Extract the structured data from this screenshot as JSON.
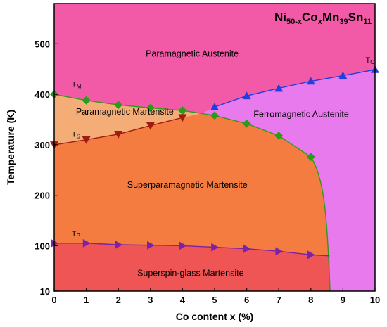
{
  "chart_data": {
    "type": "line",
    "title_parts": [
      {
        "text": "Ni",
        "sub": false
      },
      {
        "text": "50-x",
        "sub": true
      },
      {
        "text": "Co",
        "sub": false
      },
      {
        "text": "x",
        "sub": true
      },
      {
        "text": "Mn",
        "sub": false
      },
      {
        "text": "39",
        "sub": true
      },
      {
        "text": "Sn",
        "sub": false
      },
      {
        "text": "11",
        "sub": true
      }
    ],
    "xlabel": "Co content x (%)",
    "ylabel": "Temperature (K)",
    "xlim": [
      0,
      10
    ],
    "ylim": [
      10,
      580
    ],
    "x_ticks": [
      0,
      1,
      2,
      3,
      4,
      5,
      6,
      7,
      8,
      9,
      10
    ],
    "y_ticks": [
      10,
      100,
      200,
      300,
      400,
      500
    ],
    "grid": false,
    "series": [
      {
        "label_main": "T",
        "label_sub": "M",
        "marker": "diamond",
        "color": "#2e9a1c",
        "x": [
          0,
          1,
          2,
          3,
          4,
          5,
          6,
          7,
          8
        ],
        "y": [
          400,
          388,
          379,
          373,
          368,
          358,
          342,
          318,
          276
        ]
      },
      {
        "label_main": "T",
        "label_sub": "C",
        "marker": "triangle-up",
        "color": "#1f3fe0",
        "x": [
          5,
          6,
          7,
          8,
          9,
          10
        ],
        "y": [
          375,
          397,
          412,
          426,
          437,
          449
        ]
      },
      {
        "label_main": "T",
        "label_sub": "S",
        "marker": "triangle-down",
        "color": "#a01c10",
        "x": [
          0,
          1,
          2,
          3,
          4
        ],
        "y": [
          300,
          310,
          321,
          338,
          354
        ]
      },
      {
        "label_main": "T",
        "label_sub": "P",
        "marker": "triangle-right",
        "color": "#7a22a8",
        "x": [
          0,
          1,
          2,
          3,
          4,
          5,
          6,
          7,
          8
        ],
        "y": [
          105,
          105,
          102,
          101,
          100,
          97,
          94,
          89,
          82
        ]
      }
    ],
    "regions": [
      {
        "label": "Paramagnetic Austenite",
        "color": "#f25aa8",
        "label_x": 4.3,
        "label_y": 475
      },
      {
        "label": "Ferromagnetic Austenite",
        "color": "#e87aee",
        "label_x": 7.7,
        "label_y": 355
      },
      {
        "label": "Paramagnetic Martensite",
        "color": "#f5ad78",
        "label_x": 2.2,
        "label_y": 360
      },
      {
        "label": "Superparamagnetic Martensite",
        "color": "#f57c40",
        "label_x": 4.15,
        "label_y": 215
      },
      {
        "label": "Superspin-glass Martensite",
        "color": "#f05555",
        "label_x": 4.25,
        "label_y": 40
      }
    ],
    "boundary_drop_x": 8.6
  }
}
